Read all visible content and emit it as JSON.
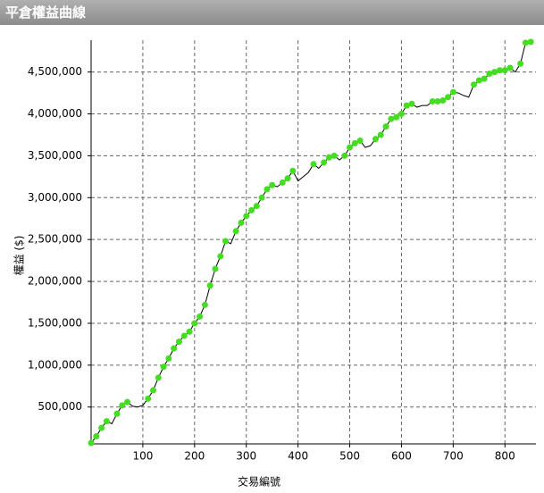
{
  "header": {
    "title": "平倉權益曲線"
  },
  "chart_data": {
    "type": "line",
    "xlabel": "交易編號",
    "ylabel": "權益 ($)",
    "x": [
      0,
      10,
      20,
      30,
      40,
      50,
      60,
      70,
      80,
      90,
      100,
      110,
      120,
      130,
      140,
      150,
      160,
      170,
      180,
      190,
      200,
      210,
      220,
      230,
      240,
      250,
      260,
      270,
      280,
      290,
      300,
      310,
      320,
      330,
      340,
      350,
      360,
      370,
      380,
      390,
      400,
      410,
      420,
      430,
      440,
      450,
      460,
      470,
      480,
      490,
      500,
      510,
      520,
      530,
      540,
      550,
      560,
      570,
      580,
      590,
      600,
      610,
      620,
      630,
      640,
      650,
      660,
      670,
      680,
      690,
      700,
      710,
      720,
      730,
      740,
      750,
      760,
      770,
      780,
      790,
      800,
      810,
      820,
      830,
      840,
      850
    ],
    "values": [
      70000,
      150000,
      250000,
      330000,
      300000,
      420000,
      520000,
      560000,
      510000,
      500000,
      520000,
      600000,
      700000,
      850000,
      980000,
      1080000,
      1200000,
      1280000,
      1350000,
      1400000,
      1500000,
      1580000,
      1720000,
      1950000,
      2150000,
      2300000,
      2480000,
      2450000,
      2600000,
      2700000,
      2780000,
      2850000,
      2900000,
      3000000,
      3100000,
      3150000,
      3130000,
      3180000,
      3230000,
      3320000,
      3200000,
      3250000,
      3300000,
      3400000,
      3350000,
      3420000,
      3480000,
      3500000,
      3450000,
      3500000,
      3600000,
      3650000,
      3680000,
      3600000,
      3620000,
      3700000,
      3750000,
      3850000,
      3940000,
      3960000,
      4000000,
      4100000,
      4120000,
      4080000,
      4100000,
      4100000,
      4150000,
      4150000,
      4160000,
      4200000,
      4260000,
      4250000,
      4220000,
      4200000,
      4350000,
      4400000,
      4420000,
      4480000,
      4500000,
      4520000,
      4520000,
      4550000,
      4500000,
      4600000,
      4850000,
      4860000
    ],
    "color": "#000000",
    "marker_color": "#44dd22",
    "xlim": [
      0,
      860
    ],
    "xticks": [
      100,
      200,
      300,
      400,
      500,
      600,
      700,
      800
    ],
    "ylim": [
      60000,
      4880000
    ],
    "yticks": [
      {
        "value": 500000,
        "label": "500,000"
      },
      {
        "value": 1000000,
        "label": "1,000,000"
      },
      {
        "value": 1500000,
        "label": "1,500,000"
      },
      {
        "value": 2000000,
        "label": "2,000,000"
      },
      {
        "value": 2500000,
        "label": "2,500,000"
      },
      {
        "value": 3000000,
        "label": "3,000,000"
      },
      {
        "value": 3500000,
        "label": "3,500,000"
      },
      {
        "value": 4000000,
        "label": "4,000,000"
      },
      {
        "value": 4500000,
        "label": "4,500,000"
      }
    ],
    "grid": true
  }
}
